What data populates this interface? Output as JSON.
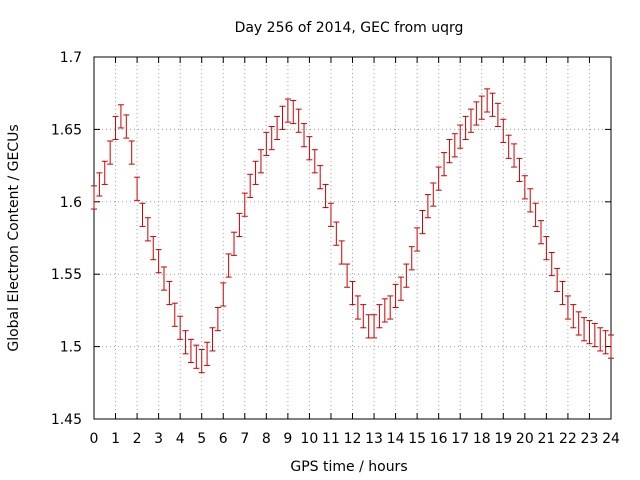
{
  "chart_data": {
    "type": "scatter",
    "title": "Day 256 of 2014, GEC from uqrg",
    "xlabel": "GPS time / hours",
    "ylabel": "Global Electron Content / GECUs",
    "xlim": [
      0,
      24
    ],
    "ylim": [
      1.45,
      1.7
    ],
    "xticks": [
      "0",
      "1",
      "2",
      "3",
      "4",
      "5",
      "6",
      "7",
      "8",
      "9",
      "10",
      "11",
      "12",
      "13",
      "14",
      "15",
      "16",
      "17",
      "18",
      "19",
      "20",
      "21",
      "22",
      "23",
      "24"
    ],
    "yticks": [
      "1.45",
      "1.5",
      "1.55",
      "1.6",
      "1.65",
      "1.7"
    ],
    "grid": true,
    "series": [
      {
        "name": "GEC",
        "color": "#cc0000",
        "error": 0.008,
        "x": [
          0.0,
          0.25,
          0.5,
          0.75,
          1.0,
          1.25,
          1.5,
          1.75,
          2.0,
          2.25,
          2.5,
          2.75,
          3.0,
          3.25,
          3.5,
          3.75,
          4.0,
          4.25,
          4.5,
          4.75,
          5.0,
          5.25,
          5.5,
          5.75,
          6.0,
          6.25,
          6.5,
          6.75,
          7.0,
          7.25,
          7.5,
          7.75,
          8.0,
          8.25,
          8.5,
          8.75,
          9.0,
          9.25,
          9.5,
          9.75,
          10.0,
          10.25,
          10.5,
          10.75,
          11.0,
          11.25,
          11.5,
          11.75,
          12.0,
          12.25,
          12.5,
          12.75,
          13.0,
          13.25,
          13.5,
          13.75,
          14.0,
          14.25,
          14.5,
          14.75,
          15.0,
          15.25,
          15.5,
          15.75,
          16.0,
          16.25,
          16.5,
          16.75,
          17.0,
          17.25,
          17.5,
          17.75,
          18.0,
          18.25,
          18.5,
          18.75,
          19.0,
          19.25,
          19.5,
          19.75,
          20.0,
          20.25,
          20.5,
          20.75,
          21.0,
          21.25,
          21.5,
          21.75,
          22.0,
          22.25,
          22.5,
          22.75,
          23.0,
          23.25,
          23.5,
          23.75,
          24.0
        ],
        "y": [
          1.603,
          1.612,
          1.62,
          1.634,
          1.651,
          1.659,
          1.652,
          1.634,
          1.609,
          1.591,
          1.581,
          1.568,
          1.559,
          1.547,
          1.537,
          1.522,
          1.513,
          1.503,
          1.497,
          1.493,
          1.49,
          1.495,
          1.505,
          1.519,
          1.536,
          1.556,
          1.571,
          1.584,
          1.598,
          1.611,
          1.62,
          1.628,
          1.64,
          1.644,
          1.651,
          1.658,
          1.663,
          1.662,
          1.656,
          1.646,
          1.637,
          1.628,
          1.617,
          1.604,
          1.591,
          1.578,
          1.565,
          1.549,
          1.537,
          1.527,
          1.521,
          1.514,
          1.514,
          1.521,
          1.525,
          1.527,
          1.535,
          1.54,
          1.549,
          1.561,
          1.574,
          1.586,
          1.597,
          1.605,
          1.616,
          1.626,
          1.635,
          1.639,
          1.645,
          1.651,
          1.656,
          1.661,
          1.665,
          1.67,
          1.667,
          1.66,
          1.649,
          1.638,
          1.632,
          1.622,
          1.61,
          1.601,
          1.591,
          1.579,
          1.568,
          1.557,
          1.546,
          1.537,
          1.527,
          1.521,
          1.516,
          1.512,
          1.51,
          1.508,
          1.505,
          1.503,
          1.5
        ]
      }
    ]
  }
}
